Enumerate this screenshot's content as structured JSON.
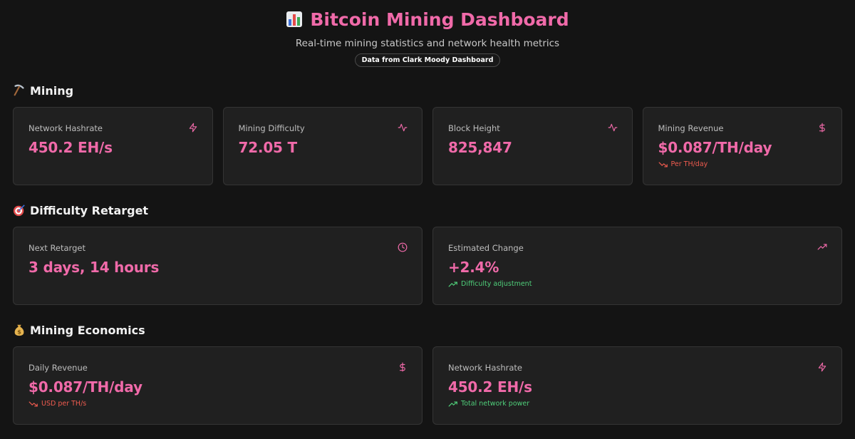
{
  "header": {
    "title": "Bitcoin Mining Dashboard",
    "subtitle": "Real-time mining statistics and network health metrics",
    "source_badge": "Data from Clark Moody Dashboard"
  },
  "colors": {
    "accent": "#f06aa9",
    "background": "#141414",
    "card": "#202020",
    "negative": "#ef5b4f",
    "positive": "#4fcf7a"
  },
  "sections": {
    "mining": {
      "icon": "pickaxe-icon",
      "title": "Mining",
      "cards": [
        {
          "label": "Network Hashrate",
          "value": "450.2 EH/s",
          "icon": "lightning-icon"
        },
        {
          "label": "Mining Difficulty",
          "value": "72.05 T",
          "icon": "activity-icon"
        },
        {
          "label": "Block Height",
          "value": "825,847",
          "icon": "activity-icon"
        },
        {
          "label": "Mining Revenue",
          "value": "$0.087/TH/day",
          "icon": "dollar-icon",
          "sub": "Per TH/day",
          "trend": "down"
        }
      ]
    },
    "retarget": {
      "icon": "target-icon",
      "title": "Difficulty Retarget",
      "cards": [
        {
          "label": "Next Retarget",
          "value": "3 days, 14 hours",
          "icon": "clock-icon"
        },
        {
          "label": "Estimated Change",
          "value": "+2.4%",
          "icon": "trending-up-icon",
          "sub": "Difficulty adjustment",
          "trend": "up"
        }
      ]
    },
    "economics": {
      "icon": "money-bag-icon",
      "title": "Mining Economics",
      "cards": [
        {
          "label": "Daily Revenue",
          "value": "$0.087/TH/day",
          "icon": "dollar-icon",
          "sub": "USD per TH/s",
          "trend": "down"
        },
        {
          "label": "Network Hashrate",
          "value": "450.2 EH/s",
          "icon": "lightning-icon",
          "sub": "Total network power",
          "trend": "up"
        }
      ]
    }
  }
}
